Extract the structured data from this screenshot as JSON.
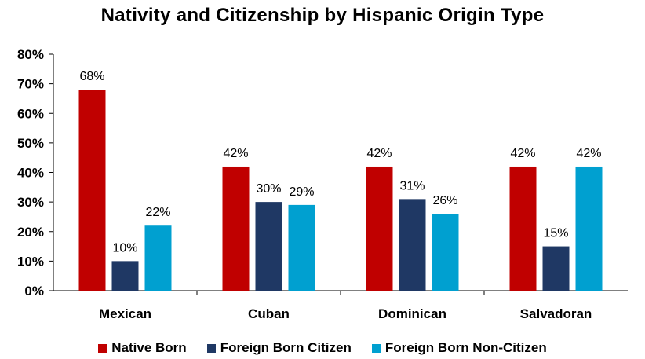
{
  "chart_data": {
    "type": "bar",
    "title": "Nativity and Citizenship by Hispanic Origin Type",
    "categories": [
      "Mexican",
      "Cuban",
      "Dominican",
      "Salvadoran"
    ],
    "series": [
      {
        "name": "Native Born",
        "values": [
          68,
          42,
          42,
          42
        ],
        "labels": [
          "68%",
          "42%",
          "42%",
          "42%"
        ],
        "color": "#c00000"
      },
      {
        "name": "Foreign Born Citizen",
        "values": [
          10,
          30,
          31,
          15
        ],
        "labels": [
          "10%",
          "30%",
          "31%",
          "15%"
        ],
        "color": "#1f3864"
      },
      {
        "name": "Foreign Born Non-Citizen",
        "values": [
          22,
          29,
          26,
          42
        ],
        "labels": [
          "22%",
          "29%",
          "26%",
          "42%"
        ],
        "color": "#00a0d0"
      }
    ],
    "ylim": [
      0,
      80
    ],
    "yticks": [
      0,
      10,
      20,
      30,
      40,
      50,
      60,
      70,
      80
    ],
    "ytick_labels": [
      "0%",
      "10%",
      "20%",
      "30%",
      "40%",
      "50%",
      "60%",
      "70%",
      "80%"
    ],
    "grid": false,
    "legend_position": "bottom"
  }
}
